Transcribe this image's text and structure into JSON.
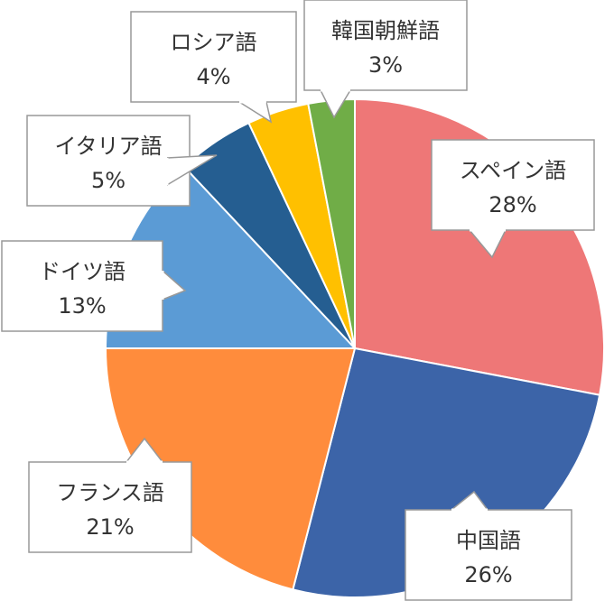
{
  "chart_data": {
    "type": "pie",
    "title": "",
    "legend": "none",
    "slices": [
      {
        "label": "スペイン語",
        "value": 28,
        "pct_label": "28%",
        "color": "#EE7777"
      },
      {
        "label": "中国語",
        "value": 26,
        "pct_label": "26%",
        "color": "#3C64A8"
      },
      {
        "label": "フランス語",
        "value": 21,
        "pct_label": "21%",
        "color": "#FF8C3C"
      },
      {
        "label": "ドイツ語",
        "value": 13,
        "pct_label": "13%",
        "color": "#5B9BD5"
      },
      {
        "label": "イタリア語",
        "value": 5,
        "pct_label": "5%",
        "color": "#255E91"
      },
      {
        "label": "ロシア語",
        "value": 4,
        "pct_label": "4%",
        "color": "#FFC000"
      },
      {
        "label": "韓国朝鮮語",
        "value": 3,
        "pct_label": "3%",
        "color": "#70AD47"
      }
    ]
  }
}
